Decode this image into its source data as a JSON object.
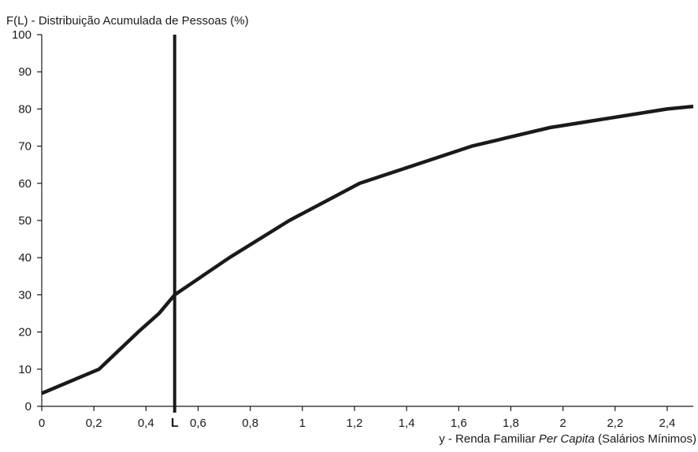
{
  "chart_data": {
    "type": "line",
    "ylabel": "F(L) - Distribuição Acumulada de Pessoas (%)",
    "xlabel": {
      "prefix": "y - Renda Familiar ",
      "italic": "Per Capita",
      "suffix": " (Salários Mínimos)"
    },
    "xlim": [
      0,
      2.5
    ],
    "ylim": [
      0,
      100
    ],
    "x_ticks": [
      {
        "value": 0,
        "label": "0"
      },
      {
        "value": 0.2,
        "label": "0,2"
      },
      {
        "value": 0.4,
        "label": "0,4"
      },
      {
        "value": 0.6,
        "label": "0,6"
      },
      {
        "value": 0.8,
        "label": "0,8"
      },
      {
        "value": 1,
        "label": "1"
      },
      {
        "value": 1.2,
        "label": "1,2"
      },
      {
        "value": 1.4,
        "label": "1,4"
      },
      {
        "value": 1.6,
        "label": "1,6"
      },
      {
        "value": 1.8,
        "label": "1,8"
      },
      {
        "value": 2,
        "label": "2"
      },
      {
        "value": 2.2,
        "label": "2,2"
      },
      {
        "value": 2.4,
        "label": "2,4"
      }
    ],
    "y_ticks": [
      {
        "value": 0,
        "label": "0"
      },
      {
        "value": 10,
        "label": "10"
      },
      {
        "value": 20,
        "label": "20"
      },
      {
        "value": 30,
        "label": "30"
      },
      {
        "value": 40,
        "label": "40"
      },
      {
        "value": 50,
        "label": "50"
      },
      {
        "value": 60,
        "label": "60"
      },
      {
        "value": 70,
        "label": "70"
      },
      {
        "value": 80,
        "label": "80"
      },
      {
        "value": 90,
        "label": "90"
      },
      {
        "value": 100,
        "label": "100"
      }
    ],
    "series": [
      {
        "color": "#1a1a1a",
        "x": [
          0,
          0.22,
          0.37,
          0.45,
          0.51,
          0.72,
          0.95,
          1.22,
          1.65,
          1.95,
          2.4,
          2.5
        ],
        "y": [
          3.5,
          10,
          20,
          25,
          30,
          40,
          50,
          60,
          70,
          75,
          80,
          80.7
        ]
      }
    ],
    "vertical_marker": {
      "x": 0.51,
      "label": "L",
      "color": "#1a1a1a"
    },
    "grid": false
  }
}
